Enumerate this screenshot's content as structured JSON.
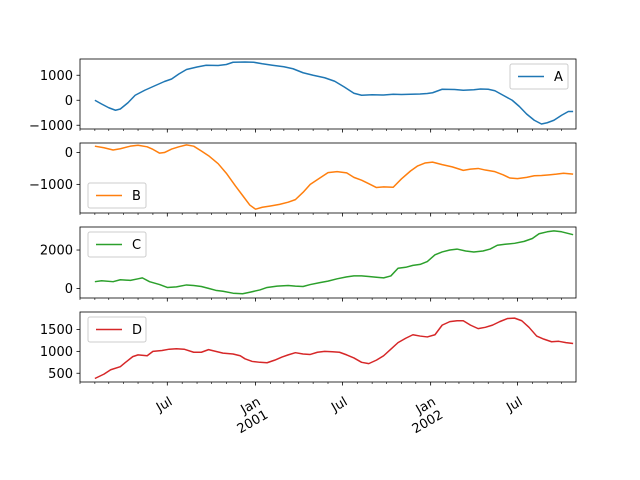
{
  "chart_data": {
    "type": "line",
    "layout": "vertical-subplots",
    "shared_x": true,
    "x_tick_labels": [
      {
        "date": "2000-07-01",
        "lines": [
          "Jul"
        ]
      },
      {
        "date": "2001-01-01",
        "lines": [
          "Jan",
          "2001"
        ]
      },
      {
        "date": "2001-07-01",
        "lines": [
          "Jul"
        ]
      },
      {
        "date": "2002-01-01",
        "lines": [
          "Jan",
          "2002"
        ]
      },
      {
        "date": "2002-07-01",
        "lines": [
          "Jul"
        ]
      }
    ],
    "xlim": [
      "2000-01-01",
      "2002-10-31"
    ],
    "grid": false,
    "panels": [
      {
        "series_name": "A",
        "color": "#1f77b4",
        "legend_position": "upper-right",
        "ylim": [
          -1150,
          1650
        ],
        "yticks": [
          -1000,
          0,
          1000
        ],
        "ytick_labels": [
          "−1000",
          "0",
          "1000"
        ],
        "points": [
          [
            "2000-02-01",
            0
          ],
          [
            "2000-02-15",
            -150
          ],
          [
            "2000-03-01",
            -300
          ],
          [
            "2000-03-15",
            -400
          ],
          [
            "2000-03-25",
            -350
          ],
          [
            "2000-04-10",
            -100
          ],
          [
            "2000-04-25",
            200
          ],
          [
            "2000-05-15",
            400
          ],
          [
            "2000-06-05",
            580
          ],
          [
            "2000-06-25",
            750
          ],
          [
            "2000-07-10",
            850
          ],
          [
            "2000-07-25",
            1050
          ],
          [
            "2000-08-10",
            1230
          ],
          [
            "2000-09-01",
            1330
          ],
          [
            "2000-09-20",
            1400
          ],
          [
            "2000-10-15",
            1390
          ],
          [
            "2000-11-01",
            1430
          ],
          [
            "2000-11-15",
            1520
          ],
          [
            "2000-12-10",
            1530
          ],
          [
            "2000-12-28",
            1520
          ],
          [
            "2001-01-15",
            1460
          ],
          [
            "2001-02-05",
            1400
          ],
          [
            "2001-03-01",
            1340
          ],
          [
            "2001-03-20",
            1260
          ],
          [
            "2001-04-10",
            1100
          ],
          [
            "2001-05-01",
            1000
          ],
          [
            "2001-05-25",
            900
          ],
          [
            "2001-06-15",
            760
          ],
          [
            "2001-07-05",
            530
          ],
          [
            "2001-07-25",
            280
          ],
          [
            "2001-08-10",
            200
          ],
          [
            "2001-09-01",
            220
          ],
          [
            "2001-09-25",
            210
          ],
          [
            "2001-10-15",
            240
          ],
          [
            "2001-11-01",
            230
          ],
          [
            "2001-11-20",
            240
          ],
          [
            "2001-12-10",
            250
          ],
          [
            "2001-12-25",
            270
          ],
          [
            "2002-01-05",
            300
          ],
          [
            "2002-01-25",
            440
          ],
          [
            "2002-02-20",
            430
          ],
          [
            "2002-03-10",
            400
          ],
          [
            "2002-04-01",
            420
          ],
          [
            "2002-04-15",
            450
          ],
          [
            "2002-05-01",
            440
          ],
          [
            "2002-05-15",
            380
          ],
          [
            "2002-06-01",
            200
          ],
          [
            "2002-06-20",
            0
          ],
          [
            "2002-07-05",
            -250
          ],
          [
            "2002-07-20",
            -550
          ],
          [
            "2002-08-05",
            -800
          ],
          [
            "2002-08-20",
            -950
          ],
          [
            "2002-09-01",
            -900
          ],
          [
            "2002-09-15",
            -800
          ],
          [
            "2002-10-01",
            -600
          ],
          [
            "2002-10-15",
            -450
          ],
          [
            "2002-10-25",
            -450
          ]
        ]
      },
      {
        "series_name": "B",
        "color": "#ff7f0e",
        "legend_position": "lower-left",
        "ylim": [
          -1900,
          300
        ],
        "yticks": [
          -1000,
          0
        ],
        "ytick_labels": [
          "−1000",
          "0"
        ],
        "points": [
          [
            "2000-02-01",
            200
          ],
          [
            "2000-02-20",
            150
          ],
          [
            "2000-03-10",
            80
          ],
          [
            "2000-03-25",
            120
          ],
          [
            "2000-04-15",
            200
          ],
          [
            "2000-05-01",
            230
          ],
          [
            "2000-05-20",
            180
          ],
          [
            "2000-06-01",
            100
          ],
          [
            "2000-06-15",
            -20
          ],
          [
            "2000-06-25",
            0
          ],
          [
            "2000-07-10",
            110
          ],
          [
            "2000-07-25",
            180
          ],
          [
            "2000-08-10",
            240
          ],
          [
            "2000-08-25",
            200
          ],
          [
            "2000-09-10",
            50
          ],
          [
            "2000-09-25",
            -100
          ],
          [
            "2000-10-15",
            -350
          ],
          [
            "2000-11-01",
            -650
          ],
          [
            "2000-11-20",
            -1050
          ],
          [
            "2000-12-05",
            -1350
          ],
          [
            "2000-12-20",
            -1650
          ],
          [
            "2001-01-01",
            -1780
          ],
          [
            "2001-01-15",
            -1720
          ],
          [
            "2001-02-01",
            -1680
          ],
          [
            "2001-02-20",
            -1630
          ],
          [
            "2001-03-10",
            -1560
          ],
          [
            "2001-03-25",
            -1480
          ],
          [
            "2001-04-10",
            -1250
          ],
          [
            "2001-04-25",
            -1000
          ],
          [
            "2001-05-15",
            -800
          ],
          [
            "2001-06-01",
            -630
          ],
          [
            "2001-06-20",
            -600
          ],
          [
            "2001-07-10",
            -640
          ],
          [
            "2001-07-25",
            -780
          ],
          [
            "2001-08-10",
            -870
          ],
          [
            "2001-08-25",
            -980
          ],
          [
            "2001-09-10",
            -1100
          ],
          [
            "2001-09-25",
            -1080
          ],
          [
            "2001-10-15",
            -1090
          ],
          [
            "2001-11-01",
            -830
          ],
          [
            "2001-11-20",
            -580
          ],
          [
            "2001-12-05",
            -420
          ],
          [
            "2001-12-20",
            -330
          ],
          [
            "2002-01-05",
            -300
          ],
          [
            "2002-01-25",
            -380
          ],
          [
            "2002-02-15",
            -450
          ],
          [
            "2002-03-10",
            -560
          ],
          [
            "2002-03-25",
            -520
          ],
          [
            "2002-04-10",
            -500
          ],
          [
            "2002-04-25",
            -550
          ],
          [
            "2002-05-15",
            -600
          ],
          [
            "2002-06-01",
            -700
          ],
          [
            "2002-06-15",
            -800
          ],
          [
            "2002-07-01",
            -820
          ],
          [
            "2002-07-20",
            -780
          ],
          [
            "2002-08-05",
            -730
          ],
          [
            "2002-08-20",
            -720
          ],
          [
            "2002-09-05",
            -700
          ],
          [
            "2002-09-20",
            -680
          ],
          [
            "2002-10-05",
            -650
          ],
          [
            "2002-10-25",
            -680
          ]
        ]
      },
      {
        "series_name": "C",
        "color": "#2ca02c",
        "legend_position": "upper-left",
        "ylim": [
          -500,
          3200
        ],
        "yticks": [
          0,
          2000
        ],
        "ytick_labels": [
          "0",
          "2000"
        ],
        "points": [
          [
            "2000-02-01",
            350
          ],
          [
            "2000-02-15",
            400
          ],
          [
            "2000-03-10",
            350
          ],
          [
            "2000-03-25",
            450
          ],
          [
            "2000-04-15",
            420
          ],
          [
            "2000-05-01",
            500
          ],
          [
            "2000-05-10",
            550
          ],
          [
            "2000-05-25",
            350
          ],
          [
            "2000-06-15",
            200
          ],
          [
            "2000-07-01",
            50
          ],
          [
            "2000-07-20",
            80
          ],
          [
            "2000-08-10",
            180
          ],
          [
            "2000-08-25",
            150
          ],
          [
            "2000-09-10",
            100
          ],
          [
            "2000-09-25",
            0
          ],
          [
            "2000-10-10",
            -100
          ],
          [
            "2000-10-25",
            -150
          ],
          [
            "2000-11-15",
            -250
          ],
          [
            "2000-12-05",
            -280
          ],
          [
            "2000-12-20",
            -200
          ],
          [
            "2001-01-10",
            -80
          ],
          [
            "2001-01-25",
            50
          ],
          [
            "2001-02-15",
            120
          ],
          [
            "2001-03-10",
            150
          ],
          [
            "2001-03-25",
            120
          ],
          [
            "2001-04-10",
            100
          ],
          [
            "2001-04-25",
            200
          ],
          [
            "2001-05-15",
            300
          ],
          [
            "2001-06-01",
            380
          ],
          [
            "2001-06-20",
            500
          ],
          [
            "2001-07-10",
            600
          ],
          [
            "2001-07-25",
            650
          ],
          [
            "2001-08-10",
            650
          ],
          [
            "2001-08-25",
            620
          ],
          [
            "2001-09-10",
            580
          ],
          [
            "2001-09-25",
            550
          ],
          [
            "2001-10-10",
            650
          ],
          [
            "2001-10-25",
            1050
          ],
          [
            "2001-11-10",
            1100
          ],
          [
            "2001-11-25",
            1200
          ],
          [
            "2001-12-10",
            1250
          ],
          [
            "2001-12-25",
            1400
          ],
          [
            "2002-01-10",
            1750
          ],
          [
            "2002-01-25",
            1900
          ],
          [
            "2002-02-10",
            2000
          ],
          [
            "2002-02-25",
            2050
          ],
          [
            "2002-03-15",
            1950
          ],
          [
            "2002-04-01",
            1900
          ],
          [
            "2002-04-20",
            1950
          ],
          [
            "2002-05-05",
            2050
          ],
          [
            "2002-05-20",
            2250
          ],
          [
            "2002-06-05",
            2300
          ],
          [
            "2002-06-25",
            2350
          ],
          [
            "2002-07-15",
            2450
          ],
          [
            "2002-08-01",
            2600
          ],
          [
            "2002-08-15",
            2850
          ],
          [
            "2002-09-01",
            2950
          ],
          [
            "2002-09-15",
            3000
          ],
          [
            "2002-10-01",
            2950
          ],
          [
            "2002-10-25",
            2800
          ]
        ]
      },
      {
        "series_name": "D",
        "color": "#d62728",
        "legend_position": "upper-left",
        "ylim": [
          300,
          1900
        ],
        "yticks": [
          500,
          1000,
          1500
        ],
        "ytick_labels": [
          "500",
          "1000",
          "1500"
        ],
        "points": [
          [
            "2000-02-01",
            380
          ],
          [
            "2000-02-20",
            480
          ],
          [
            "2000-03-05",
            580
          ],
          [
            "2000-03-25",
            650
          ],
          [
            "2000-04-05",
            750
          ],
          [
            "2000-04-20",
            880
          ],
          [
            "2000-05-01",
            920
          ],
          [
            "2000-05-20",
            900
          ],
          [
            "2000-06-01",
            1000
          ],
          [
            "2000-06-20",
            1020
          ],
          [
            "2000-07-05",
            1050
          ],
          [
            "2000-07-20",
            1060
          ],
          [
            "2000-08-05",
            1050
          ],
          [
            "2000-08-25",
            980
          ],
          [
            "2000-09-10",
            980
          ],
          [
            "2000-09-25",
            1040
          ],
          [
            "2000-10-10",
            1000
          ],
          [
            "2000-10-25",
            960
          ],
          [
            "2000-11-15",
            940
          ],
          [
            "2000-11-30",
            900
          ],
          [
            "2000-12-10",
            830
          ],
          [
            "2000-12-25",
            770
          ],
          [
            "2001-01-10",
            750
          ],
          [
            "2001-01-25",
            740
          ],
          [
            "2001-02-10",
            800
          ],
          [
            "2001-02-25",
            870
          ],
          [
            "2001-03-10",
            920
          ],
          [
            "2001-03-25",
            970
          ],
          [
            "2001-04-10",
            940
          ],
          [
            "2001-04-25",
            930
          ],
          [
            "2001-05-10",
            980
          ],
          [
            "2001-05-25",
            1000
          ],
          [
            "2001-06-10",
            990
          ],
          [
            "2001-06-25",
            980
          ],
          [
            "2001-07-10",
            920
          ],
          [
            "2001-07-25",
            850
          ],
          [
            "2001-08-10",
            750
          ],
          [
            "2001-08-25",
            720
          ],
          [
            "2001-09-10",
            800
          ],
          [
            "2001-09-25",
            900
          ],
          [
            "2001-10-10",
            1050
          ],
          [
            "2001-10-25",
            1200
          ],
          [
            "2001-11-10",
            1300
          ],
          [
            "2001-11-25",
            1380
          ],
          [
            "2001-12-10",
            1350
          ],
          [
            "2001-12-25",
            1330
          ],
          [
            "2002-01-10",
            1380
          ],
          [
            "2002-01-25",
            1600
          ],
          [
            "2002-02-10",
            1680
          ],
          [
            "2002-02-25",
            1700
          ],
          [
            "2002-03-10",
            1700
          ],
          [
            "2002-03-25",
            1600
          ],
          [
            "2002-04-10",
            1520
          ],
          [
            "2002-04-25",
            1550
          ],
          [
            "2002-05-10",
            1600
          ],
          [
            "2002-05-25",
            1680
          ],
          [
            "2002-06-10",
            1750
          ],
          [
            "2002-06-25",
            1760
          ],
          [
            "2002-07-10",
            1700
          ],
          [
            "2002-07-25",
            1550
          ],
          [
            "2002-08-10",
            1350
          ],
          [
            "2002-08-25",
            1280
          ],
          [
            "2002-09-10",
            1220
          ],
          [
            "2002-09-25",
            1230
          ],
          [
            "2002-10-10",
            1200
          ],
          [
            "2002-10-25",
            1180
          ]
        ]
      }
    ]
  }
}
